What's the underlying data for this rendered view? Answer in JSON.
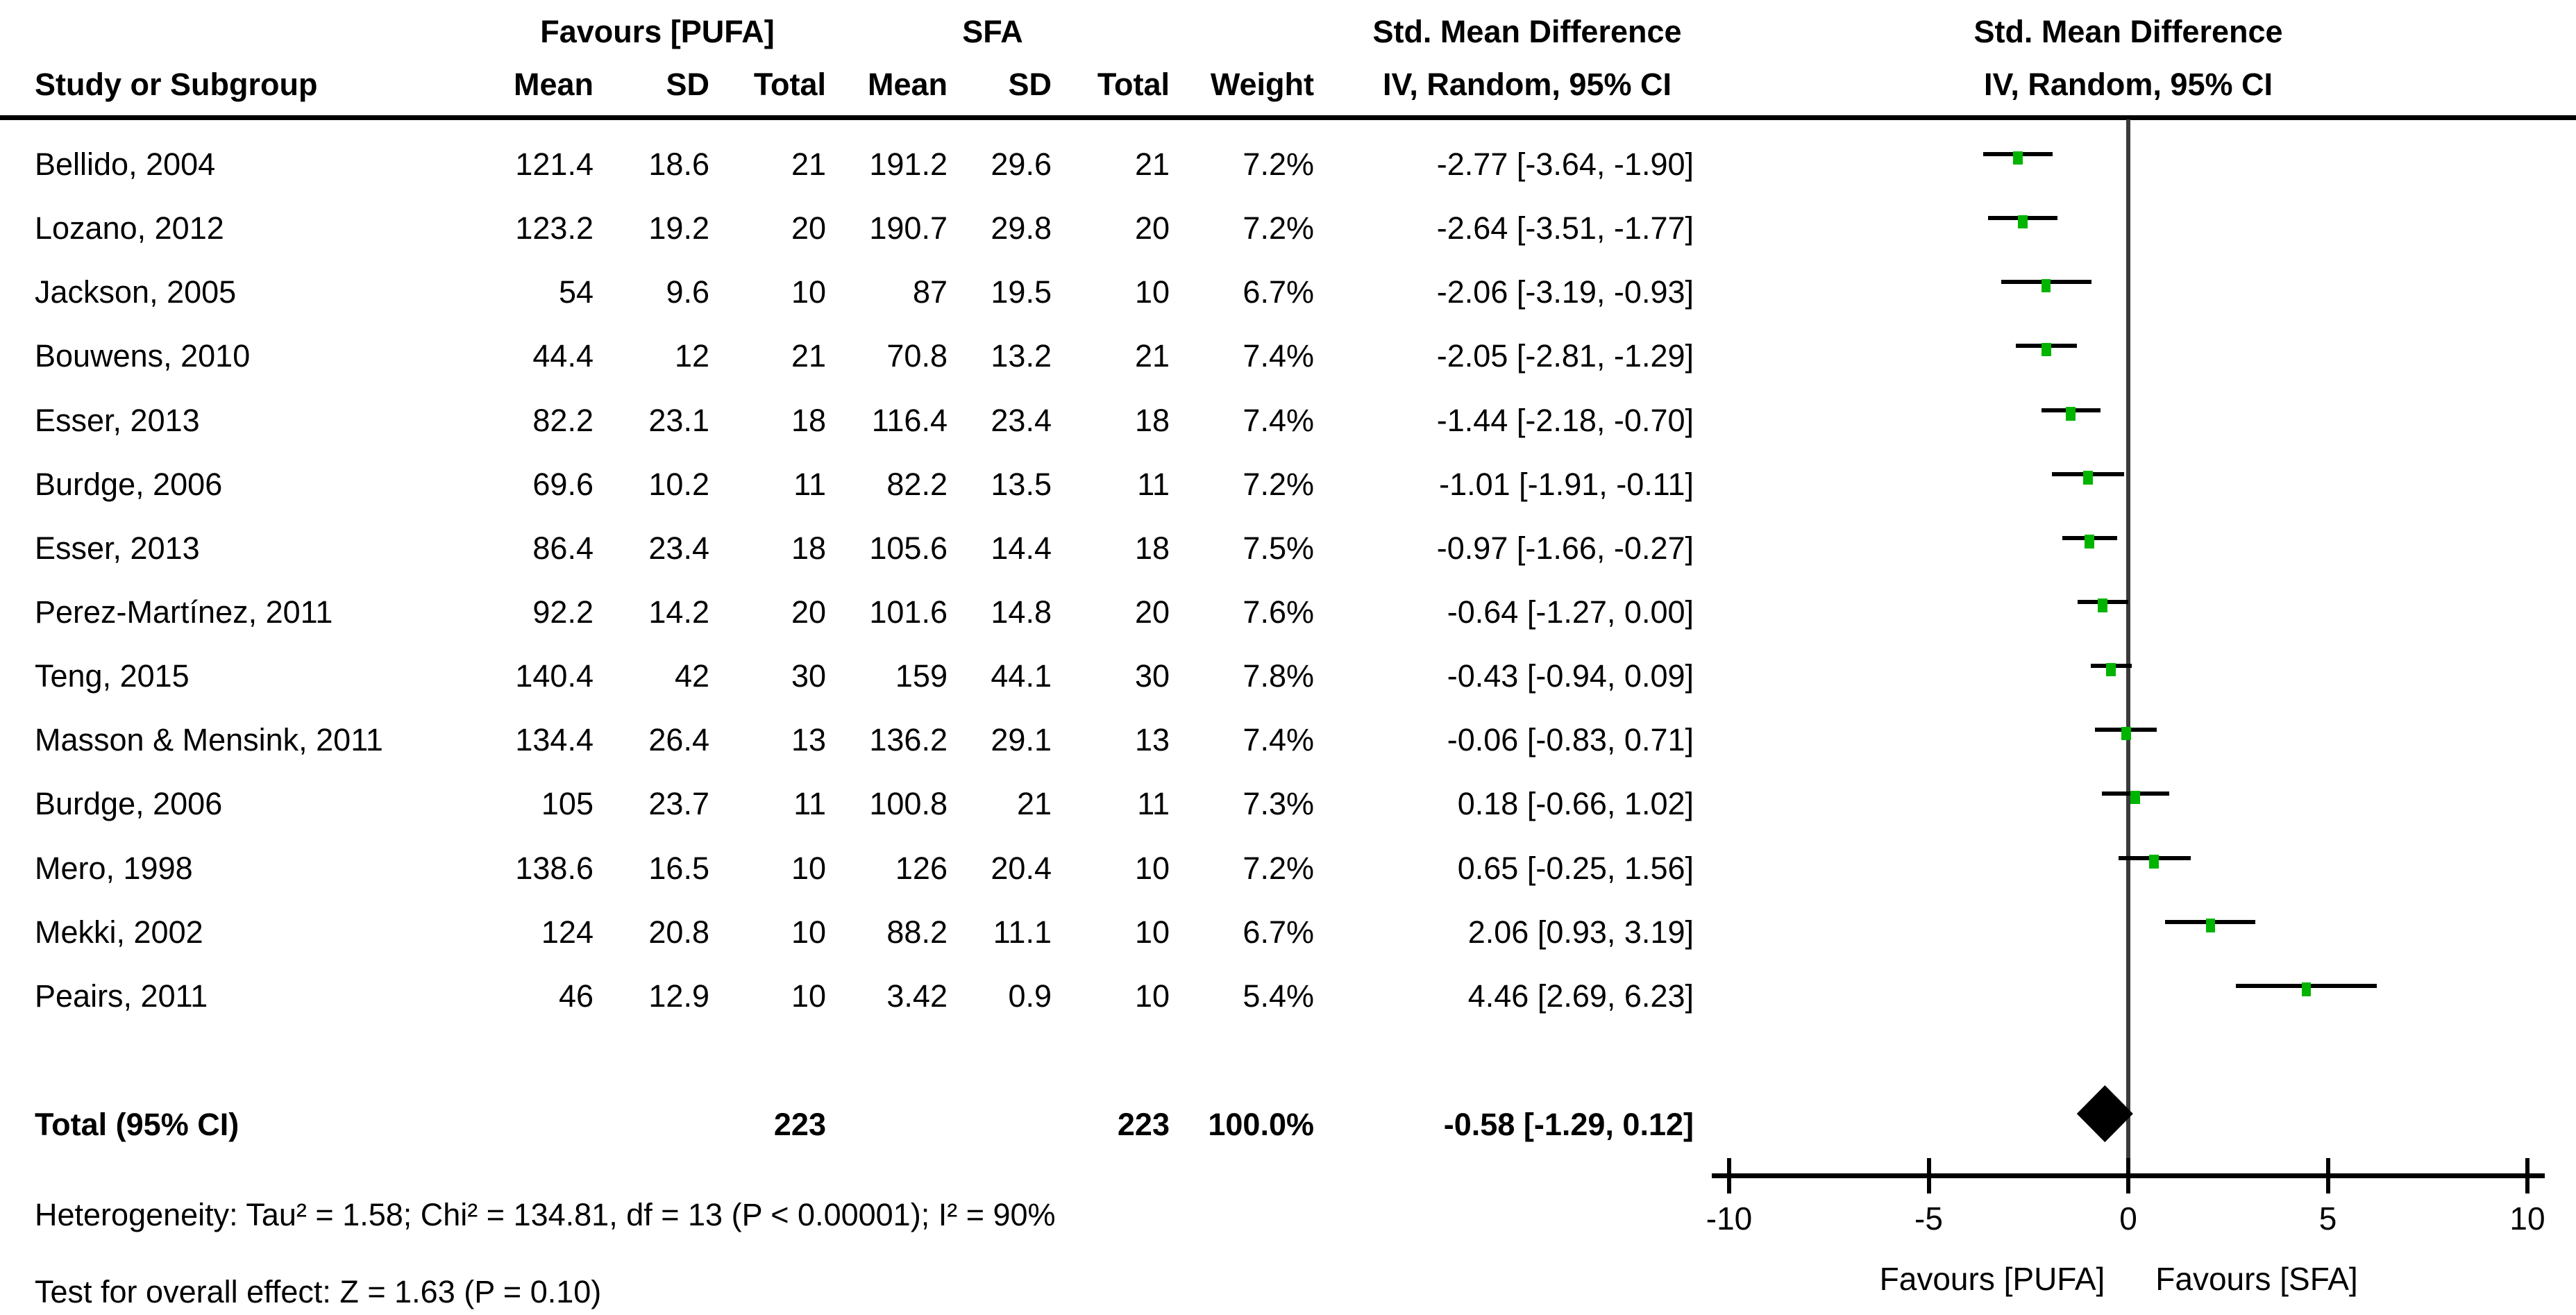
{
  "header": {
    "study_col": "Study or Subgroup",
    "group1_label": "Favours [PUFA]",
    "group2_label": "SFA",
    "mean1": "Mean",
    "sd1": "SD",
    "total1": "Total",
    "mean2": "Mean",
    "sd2": "SD",
    "total2": "Total",
    "weight": "Weight",
    "smd_text_col": "Std. Mean Difference",
    "smd_plot_col": "Std. Mean Difference",
    "method_text_col": "IV, Random, 95% CI",
    "method_plot_col": "IV, Random, 95% CI"
  },
  "chart_data": {
    "type": "forest",
    "effect_measure": "Std. Mean Difference",
    "model": "IV, Random, 95% CI",
    "studies": [
      {
        "name": "Bellido, 2004",
        "mean1": "121.4",
        "sd1": "18.6",
        "total1": "21",
        "mean2": "191.2",
        "sd2": "29.6",
        "total2": "21",
        "weight": "7.2%",
        "ci_text": "-2.77 [-3.64, -1.90]",
        "smd": -2.77,
        "lo": -3.64,
        "hi": -1.9
      },
      {
        "name": "Lozano, 2012",
        "mean1": "123.2",
        "sd1": "19.2",
        "total1": "20",
        "mean2": "190.7",
        "sd2": "29.8",
        "total2": "20",
        "weight": "7.2%",
        "ci_text": "-2.64 [-3.51, -1.77]",
        "smd": -2.64,
        "lo": -3.51,
        "hi": -1.77
      },
      {
        "name": "Jackson, 2005",
        "mean1": "54",
        "sd1": "9.6",
        "total1": "10",
        "mean2": "87",
        "sd2": "19.5",
        "total2": "10",
        "weight": "6.7%",
        "ci_text": "-2.06 [-3.19, -0.93]",
        "smd": -2.06,
        "lo": -3.19,
        "hi": -0.93
      },
      {
        "name": "Bouwens, 2010",
        "mean1": "44.4",
        "sd1": "12",
        "total1": "21",
        "mean2": "70.8",
        "sd2": "13.2",
        "total2": "21",
        "weight": "7.4%",
        "ci_text": "-2.05 [-2.81, -1.29]",
        "smd": -2.05,
        "lo": -2.81,
        "hi": -1.29
      },
      {
        "name": "Esser, 2013",
        "mean1": "82.2",
        "sd1": "23.1",
        "total1": "18",
        "mean2": "116.4",
        "sd2": "23.4",
        "total2": "18",
        "weight": "7.4%",
        "ci_text": "-1.44 [-2.18, -0.70]",
        "smd": -1.44,
        "lo": -2.18,
        "hi": -0.7
      },
      {
        "name": "Burdge, 2006",
        "mean1": "69.6",
        "sd1": "10.2",
        "total1": "11",
        "mean2": "82.2",
        "sd2": "13.5",
        "total2": "11",
        "weight": "7.2%",
        "ci_text": "-1.01 [-1.91, -0.11]",
        "smd": -1.01,
        "lo": -1.91,
        "hi": -0.11
      },
      {
        "name": "Esser, 2013",
        "mean1": "86.4",
        "sd1": "23.4",
        "total1": "18",
        "mean2": "105.6",
        "sd2": "14.4",
        "total2": "18",
        "weight": "7.5%",
        "ci_text": "-0.97 [-1.66, -0.27]",
        "smd": -0.97,
        "lo": -1.66,
        "hi": -0.27
      },
      {
        "name": "Perez-Martínez, 2011",
        "mean1": "92.2",
        "sd1": "14.2",
        "total1": "20",
        "mean2": "101.6",
        "sd2": "14.8",
        "total2": "20",
        "weight": "7.6%",
        "ci_text": "-0.64 [-1.27, 0.00]",
        "smd": -0.64,
        "lo": -1.27,
        "hi": 0.0
      },
      {
        "name": "Teng, 2015",
        "mean1": "140.4",
        "sd1": "42",
        "total1": "30",
        "mean2": "159",
        "sd2": "44.1",
        "total2": "30",
        "weight": "7.8%",
        "ci_text": "-0.43 [-0.94, 0.09]",
        "smd": -0.43,
        "lo": -0.94,
        "hi": 0.09
      },
      {
        "name": "Masson & Mensink, 2011",
        "mean1": "134.4",
        "sd1": "26.4",
        "total1": "13",
        "mean2": "136.2",
        "sd2": "29.1",
        "total2": "13",
        "weight": "7.4%",
        "ci_text": "-0.06 [-0.83, 0.71]",
        "smd": -0.06,
        "lo": -0.83,
        "hi": 0.71
      },
      {
        "name": "Burdge, 2006",
        "mean1": "105",
        "sd1": "23.7",
        "total1": "11",
        "mean2": "100.8",
        "sd2": "21",
        "total2": "11",
        "weight": "7.3%",
        "ci_text": "0.18 [-0.66, 1.02]",
        "smd": 0.18,
        "lo": -0.66,
        "hi": 1.02
      },
      {
        "name": "Mero, 1998",
        "mean1": "138.6",
        "sd1": "16.5",
        "total1": "10",
        "mean2": "126",
        "sd2": "20.4",
        "total2": "10",
        "weight": "7.2%",
        "ci_text": "0.65 [-0.25, 1.56]",
        "smd": 0.65,
        "lo": -0.25,
        "hi": 1.56
      },
      {
        "name": "Mekki, 2002",
        "mean1": "124",
        "sd1": "20.8",
        "total1": "10",
        "mean2": "88.2",
        "sd2": "11.1",
        "total2": "10",
        "weight": "6.7%",
        "ci_text": "2.06 [0.93, 3.19]",
        "smd": 2.06,
        "lo": 0.93,
        "hi": 3.19
      },
      {
        "name": "Peairs, 2011",
        "mean1": "46",
        "sd1": "12.9",
        "total1": "10",
        "mean2": "3.42",
        "sd2": "0.9",
        "total2": "10",
        "weight": "5.4%",
        "ci_text": "4.46 [2.69, 6.23]",
        "smd": 4.46,
        "lo": 2.69,
        "hi": 6.23
      }
    ],
    "total_row": {
      "label": "Total (95% CI)",
      "total1": "223",
      "total2": "223",
      "weight": "100.0%",
      "ci_text": "-0.58 [-1.29, 0.12]",
      "smd": -0.58,
      "lo": -1.29,
      "hi": 0.12
    },
    "heterogeneity": "Heterogeneity: Tau² = 1.58; Chi² = 134.81, df = 13 (P < 0.00001); I² = 90%",
    "overall_effect": "Test for overall effect: Z = 1.63 (P = 0.10)",
    "axis": {
      "min": -10,
      "max": 10,
      "ticks": [
        "-10",
        "-5",
        "0",
        "5",
        "10"
      ],
      "tick_values": [
        -10,
        -5,
        0,
        5,
        10
      ],
      "left_label": "Favours [PUFA]",
      "right_label": "Favours [SFA]"
    },
    "colors": {
      "marker": "#00b400",
      "line": "#000000",
      "zero_line": "#3a3a3a"
    }
  }
}
